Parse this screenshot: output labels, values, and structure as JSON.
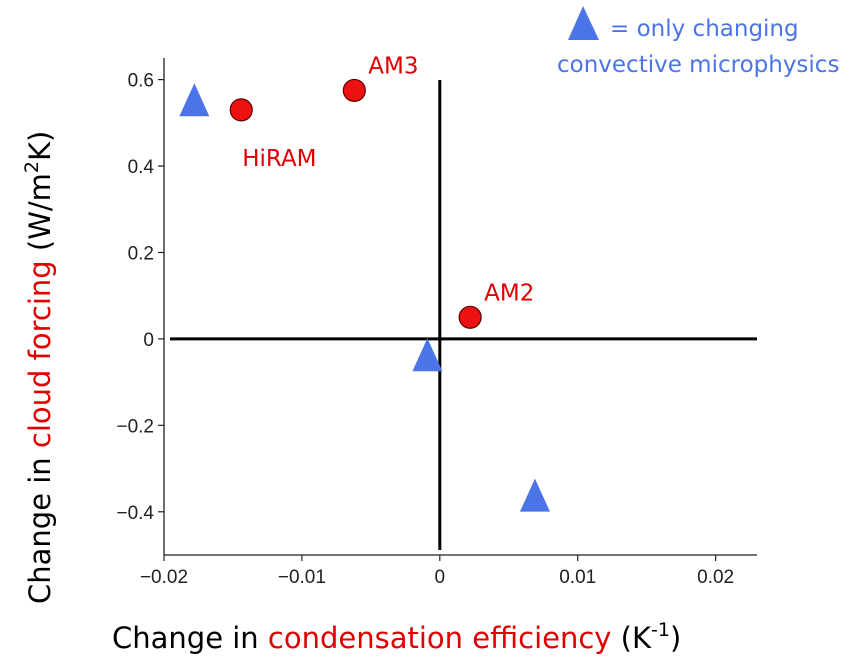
{
  "chart_data": {
    "type": "scatter",
    "title": "",
    "xlabel": {
      "prefix": "Change in ",
      "highlight": "condensation efficiency",
      "unit": " (K",
      "unit_sup": "-1",
      "unit_end": ")"
    },
    "ylabel": {
      "prefix": "Change in ",
      "highlight": "cloud forcing",
      "unit": " (W/m",
      "unit_sup": "2",
      "unit_end": "K)"
    },
    "xlim": [
      -0.02,
      0.023
    ],
    "ylim": [
      -0.5,
      0.65
    ],
    "xticks": [
      {
        "v": -0.02,
        "label": "−0.02"
      },
      {
        "v": -0.01,
        "label": "−0.01"
      },
      {
        "v": 0,
        "label": "0"
      },
      {
        "v": 0.01,
        "label": "0.01"
      },
      {
        "v": 0.02,
        "label": "0.02"
      }
    ],
    "yticks": [
      {
        "v": 0.6,
        "label": "0.6"
      },
      {
        "v": 0.4,
        "label": "0.4"
      },
      {
        "v": 0.2,
        "label": "0.2"
      },
      {
        "v": 0,
        "label": "0"
      },
      {
        "v": -0.2,
        "label": "−0.2"
      },
      {
        "v": -0.4,
        "label": "−0.4"
      }
    ],
    "highlight_color": "#e00000",
    "series": [
      {
        "marker": "circle",
        "color": "#ee1111",
        "points": [
          {
            "x": -0.0144,
            "y": 0.53,
            "label": "HiRAM",
            "label_pos": "below-right"
          },
          {
            "x": -0.0062,
            "y": 0.575,
            "label": "AM3",
            "label_pos": "above-right"
          },
          {
            "x": 0.0022,
            "y": 0.05,
            "label": "AM2",
            "label_pos": "above-right"
          }
        ]
      },
      {
        "name": "= only changing convective microphysics",
        "marker": "triangle",
        "color": "#4a74e8",
        "points": [
          {
            "x": -0.0178,
            "y": 0.55
          },
          {
            "x": -0.0009,
            "y": -0.04
          },
          {
            "x": 0.0069,
            "y": -0.365
          }
        ]
      }
    ],
    "legend": {
      "position": "top-right",
      "line1": "= only changing",
      "line2": "convective microphysics",
      "color": "#4a74e8"
    }
  }
}
